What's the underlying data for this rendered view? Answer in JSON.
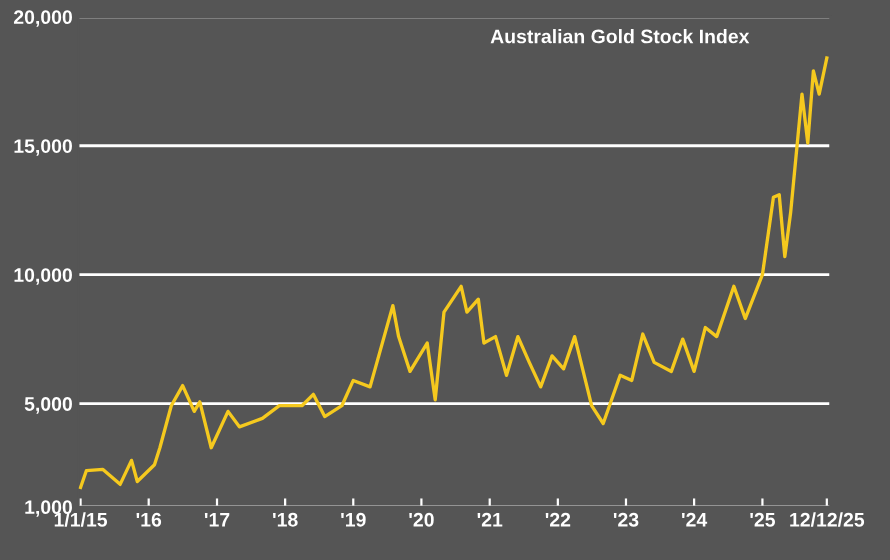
{
  "chart_data": {
    "type": "line",
    "title": "Australian Gold Stock Index",
    "x": [
      "2015-01-01",
      "2015-02-01",
      "2015-05-01",
      "2015-08-01",
      "2015-10-01",
      "2015-11-01",
      "2016-02-01",
      "2016-03-01",
      "2016-05-01",
      "2016-07-01",
      "2016-09-01",
      "2016-10-01",
      "2016-12-01",
      "2017-03-01",
      "2017-05-01",
      "2017-09-01",
      "2017-12-01",
      "2018-04-01",
      "2018-06-01",
      "2018-08-01",
      "2018-11-01",
      "2019-01-01",
      "2019-04-01",
      "2019-08-01",
      "2019-09-01",
      "2019-11-01",
      "2020-02-01",
      "2020-03-15",
      "2020-05-01",
      "2020-08-01",
      "2020-09-01",
      "2020-11-01",
      "2020-12-01",
      "2021-02-01",
      "2021-04-01",
      "2021-06-01",
      "2021-08-01",
      "2021-10-01",
      "2021-12-01",
      "2022-02-01",
      "2022-04-01",
      "2022-07-01",
      "2022-09-01",
      "2022-12-01",
      "2023-02-01",
      "2023-04-01",
      "2023-06-01",
      "2023-09-01",
      "2023-11-01",
      "2024-01-01",
      "2024-03-01",
      "2024-05-01",
      "2024-08-01",
      "2024-10-01",
      "2025-01-01",
      "2025-03-01",
      "2025-04-01",
      "2025-05-01",
      "2025-06-01",
      "2025-08-01",
      "2025-09-01",
      "2025-10-01",
      "2025-11-01",
      "2025-12-12"
    ],
    "series": [
      {
        "color": "#f5c91e",
        "values": [
          1750,
          2400,
          2450,
          1870,
          2800,
          1980,
          2630,
          3290,
          4920,
          5700,
          4700,
          5070,
          3290,
          4700,
          4100,
          4430,
          4920,
          4920,
          5360,
          4500,
          4920,
          5900,
          5650,
          8800,
          7600,
          6250,
          7350,
          5150,
          8550,
          9550,
          8550,
          9050,
          7350,
          7600,
          6100,
          7600,
          6600,
          5650,
          6850,
          6350,
          7600,
          4920,
          4230,
          6100,
          5900,
          7700,
          6600,
          6250,
          7500,
          6250,
          7950,
          7600,
          9550,
          8300,
          10000,
          13000,
          13100,
          10700,
          12400,
          17000,
          15100,
          17900,
          17000,
          18400
        ]
      }
    ],
    "xlim": [
      "2014-12-20",
      "2025-12-31"
    ],
    "xticks": [
      {
        "value": "2015-01-01",
        "label": "1/1/15"
      },
      {
        "value": "2016-01-01",
        "label": "'16"
      },
      {
        "value": "2017-01-01",
        "label": "'17"
      },
      {
        "value": "2018-01-01",
        "label": "'18"
      },
      {
        "value": "2019-01-01",
        "label": "'19"
      },
      {
        "value": "2020-01-01",
        "label": "'20"
      },
      {
        "value": "2021-01-01",
        "label": "'21"
      },
      {
        "value": "2022-01-01",
        "label": "'22"
      },
      {
        "value": "2023-01-01",
        "label": "'23"
      },
      {
        "value": "2024-01-01",
        "label": "'24"
      },
      {
        "value": "2025-01-01",
        "label": "'25"
      },
      {
        "value": "2025-12-12",
        "label": "12/12/25"
      }
    ],
    "ylim": [
      1000,
      20000
    ],
    "yticks": [
      {
        "value": 1000,
        "label": "1,000"
      },
      {
        "value": 5000,
        "label": "5,000"
      },
      {
        "value": 10000,
        "label": "10,000"
      },
      {
        "value": 15000,
        "label": "15,000"
      },
      {
        "value": 20000,
        "label": "20,000"
      }
    ],
    "grid": "y",
    "legend": false,
    "marker": "none",
    "line_style": "solid"
  }
}
